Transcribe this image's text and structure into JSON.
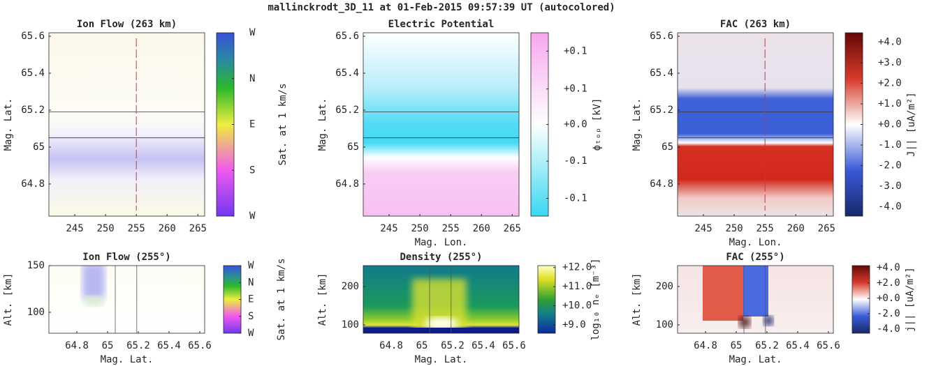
{
  "title": "mallinckrodt_3D_11 at 01-Feb-2015 09:57:39 UT (autocolored)",
  "chart_data": [
    {
      "type": "heatmap",
      "title": "Ion Flow (263 km)",
      "ylabel": "Mag. Lat.",
      "xlim": [
        240.8,
        266.1
      ],
      "ylim": [
        64.626,
        65.619
      ],
      "xticks": [
        245,
        250,
        255,
        260,
        265
      ],
      "yticks": [
        65.6,
        65.4,
        65.2,
        65,
        64.8
      ],
      "hlines": [
        65.19,
        65.05
      ],
      "vlines": [
        255
      ],
      "colorbar": {
        "label": "Sat. at 1 km/s",
        "clim": [
          0,
          4
        ],
        "ticks": [
          {
            "value": 4,
            "label": "W"
          },
          {
            "value": 3,
            "label": "N"
          },
          {
            "value": 2,
            "label": "E"
          },
          {
            "value": 1,
            "label": "S"
          },
          {
            "value": 0,
            "label": "W"
          }
        ]
      }
    },
    {
      "type": "heatmap",
      "title": "Electric Potential",
      "xlabel": "Mag. Lon.",
      "ylabel": "Mag. Lat.",
      "xlim": [
        240.8,
        266.1
      ],
      "ylim": [
        64.626,
        65.619
      ],
      "xticks": [
        245,
        250,
        255,
        260,
        265
      ],
      "yticks": [
        65.6,
        65.4,
        65.2,
        65,
        64.8
      ],
      "hlines": [
        65.19,
        65.05
      ],
      "colorbar": {
        "label": "ϕₜₒₚ [kV]",
        "clim": [
          -0.15,
          0.15
        ],
        "ticks": [
          {
            "value": 0.12,
            "label": "+0.1"
          },
          {
            "value": 0.058,
            "label": "+0.1"
          },
          {
            "value": 0,
            "label": "+0.0"
          },
          {
            "value": -0.06,
            "label": "-0.1"
          },
          {
            "value": -0.121,
            "label": "-0.1"
          }
        ]
      }
    },
    {
      "type": "heatmap",
      "title": "FAC (263 km)",
      "xlabel": "Mag. Lon.",
      "ylabel": "Mag. Lat.",
      "xlim": [
        240.8,
        266.1
      ],
      "ylim": [
        64.626,
        65.619
      ],
      "xticks": [
        245,
        250,
        255,
        260,
        265
      ],
      "yticks": [
        65.6,
        65.4,
        65.2,
        65,
        64.8
      ],
      "hlines": [
        65.19,
        65.05
      ],
      "vlines": [
        255
      ],
      "colorbar": {
        "label": "J|| [uA/m²]",
        "clim": [
          -4.45,
          4.45
        ],
        "ticks": [
          {
            "value": 4,
            "label": "+4.0"
          },
          {
            "value": 3,
            "label": "+3.0"
          },
          {
            "value": 2,
            "label": "+2.0"
          },
          {
            "value": 1,
            "label": "+1.0"
          },
          {
            "value": 0,
            "label": "+0.0"
          },
          {
            "value": -1,
            "label": "-1.0"
          },
          {
            "value": -2,
            "label": "-2.0"
          },
          {
            "value": -3,
            "label": "-3.0"
          },
          {
            "value": -4,
            "label": "-4.0"
          }
        ]
      }
    },
    {
      "type": "heatmap",
      "title": "Ion Flow (255°)",
      "xlabel": "Mag. Lat.",
      "ylabel": "Alt. [km]",
      "xlim": [
        64.618,
        65.632
      ],
      "ylim": [
        77.6,
        150
      ],
      "xticks": [
        64.8,
        65,
        65.2,
        65.4,
        65.6
      ],
      "yticks": [
        150,
        100
      ],
      "vlines": [
        65.05,
        65.19
      ],
      "colorbar": {
        "label": "Sat. at 1 km/s",
        "clim": [
          0,
          4
        ],
        "ticks": [
          {
            "value": 4,
            "label": "W"
          },
          {
            "value": 3,
            "label": "N"
          },
          {
            "value": 2,
            "label": "E"
          },
          {
            "value": 1,
            "label": "S"
          },
          {
            "value": 0,
            "label": "W"
          }
        ]
      }
    },
    {
      "type": "heatmap",
      "title": "Density (255°)",
      "xlabel": "Mag. Lat.",
      "ylabel": "Alt. [km]",
      "xlim": [
        64.618,
        65.632
      ],
      "ylim": [
        78.2,
        254.5
      ],
      "xticks": [
        64.8,
        65,
        65.2,
        65.4,
        65.6
      ],
      "yticks": [
        200,
        100
      ],
      "vlines": [
        65.05,
        65.19
      ],
      "colorbar": {
        "label": "log₁₀ nₑ [m⁻³]",
        "clim": [
          8.56,
          12.1
        ],
        "ticks": [
          {
            "value": 12,
            "label": "+12.0"
          },
          {
            "value": 11,
            "label": "+11.0"
          },
          {
            "value": 10,
            "label": "+10.0"
          },
          {
            "value": 9,
            "label": "+9.0"
          }
        ]
      }
    },
    {
      "type": "heatmap",
      "title": "FAC (255°)",
      "xlabel": "Mag. Lat.",
      "ylabel": "Alt. [km]",
      "xlim": [
        64.618,
        65.632
      ],
      "ylim": [
        78.2,
        254.5
      ],
      "xticks": [
        64.8,
        65,
        65.2,
        65.4,
        65.6
      ],
      "yticks": [
        200,
        100
      ],
      "vlines": [
        65.05,
        65.19
      ],
      "colorbar": {
        "label": "j|| [uA/m²]",
        "clim": [
          -4.55,
          4.27
        ],
        "ticks": [
          {
            "value": 4,
            "label": "+4.0"
          },
          {
            "value": 2,
            "label": "+2.0"
          },
          {
            "value": 0,
            "label": "+0.0"
          },
          {
            "value": -2,
            "label": "-2.0"
          },
          {
            "value": -4,
            "label": "-4.0"
          }
        ]
      }
    }
  ]
}
